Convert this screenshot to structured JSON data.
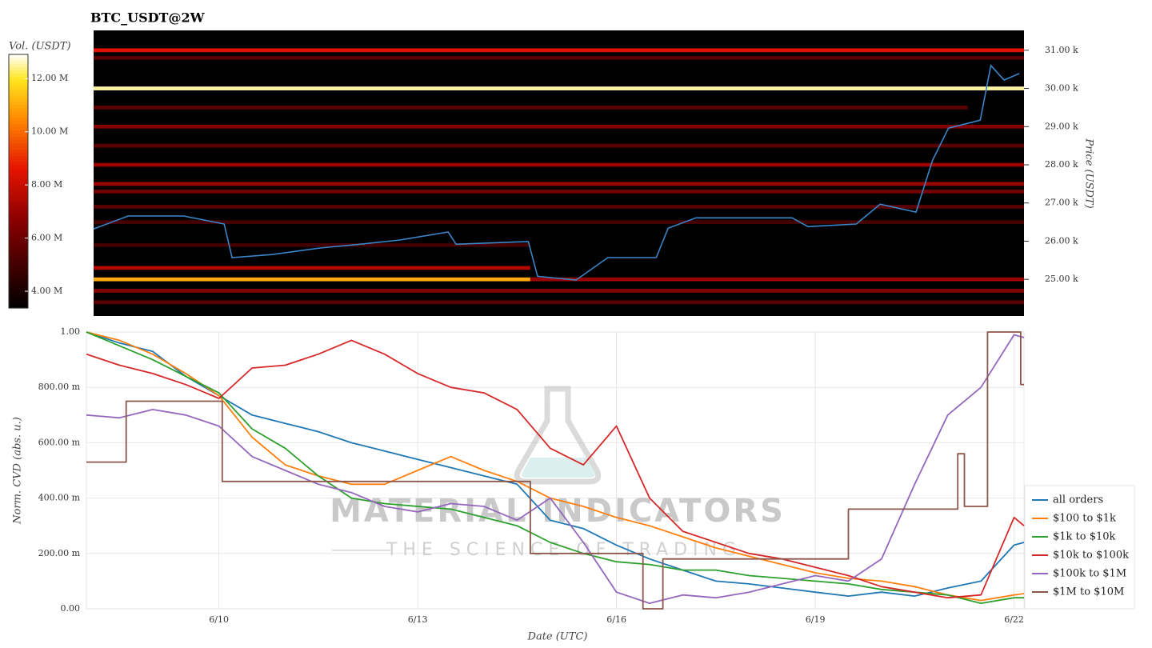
{
  "chart_data": [
    {
      "type": "heatmap",
      "title": "BTC_USDT@2W",
      "colorbar_label": "Vol. (USDT)",
      "ylabel": "Price (USDT)",
      "xlim": [
        0.11,
        14.15
      ],
      "ylim": [
        24040,
        31520
      ],
      "yticks": [
        {
          "value": 25000,
          "label": "25.00 k"
        },
        {
          "value": 26000,
          "label": "26.00 k"
        },
        {
          "value": 27000,
          "label": "27.00 k"
        },
        {
          "value": 28000,
          "label": "28.00 k"
        },
        {
          "value": 29000,
          "label": "29.00 k"
        },
        {
          "value": 30000,
          "label": "30.00 k"
        },
        {
          "value": 31000,
          "label": "31.00 k"
        }
      ],
      "clim": [
        3370000,
        12910000
      ],
      "cticks": [
        {
          "value": 4000000,
          "label": "4.00 M"
        },
        {
          "value": 6000000,
          "label": "6.00 M"
        },
        {
          "value": 8000000,
          "label": "8.00 M"
        },
        {
          "value": 10000000,
          "label": "10.00 M"
        },
        {
          "value": 12000000,
          "label": "12.00 M"
        }
      ],
      "levels": [
        {
          "x": [
            0.11,
            14.15
          ],
          "price": 31000,
          "volume": 8500000
        },
        {
          "x": [
            0.11,
            14.15
          ],
          "price": 30800,
          "volume": 5500000
        },
        {
          "x": [
            0.11,
            14.15
          ],
          "price": 30000,
          "volume": 12500000
        },
        {
          "x": [
            0.11,
            13.3
          ],
          "price": 29500,
          "volume": 5500000
        },
        {
          "x": [
            0.11,
            14.15
          ],
          "price": 29000,
          "volume": 6500000
        },
        {
          "x": [
            0.11,
            14.15
          ],
          "price": 28500,
          "volume": 5500000
        },
        {
          "x": [
            0.11,
            14.15
          ],
          "price": 28000,
          "volume": 7000000
        },
        {
          "x": [
            0.11,
            14.15
          ],
          "price": 27500,
          "volume": 7000000
        },
        {
          "x": [
            0.11,
            14.15
          ],
          "price": 27300,
          "volume": 6000000
        },
        {
          "x": [
            0.11,
            14.15
          ],
          "price": 26900,
          "volume": 5500000
        },
        {
          "x": [
            0.11,
            14.15
          ],
          "price": 26500,
          "volume": 5000000
        },
        {
          "x": [
            0.11,
            6.7
          ],
          "price": 25900,
          "volume": 5000000
        },
        {
          "x": [
            0.11,
            6.7
          ],
          "price": 25300,
          "volume": 7500000
        },
        {
          "x": [
            0.11,
            6.7
          ],
          "price": 25000,
          "volume": 11000000
        },
        {
          "x": [
            6.7,
            14.15
          ],
          "price": 25000,
          "volume": 7000000
        },
        {
          "x": [
            0.11,
            14.15
          ],
          "price": 24700,
          "volume": 6500000
        },
        {
          "x": [
            0.11,
            14.15
          ],
          "price": 24400,
          "volume": 5500000
        }
      ],
      "price_line": {
        "color": "#3a86c8",
        "x": [
          0.11,
          0.63,
          1.47,
          2.08,
          2.2,
          2.8,
          3.53,
          4.13,
          4.73,
          5.46,
          5.58,
          6.67,
          6.81,
          7.39,
          7.87,
          8.6,
          8.78,
          9.2,
          10.65,
          10.89,
          11.62,
          11.98,
          12.52,
          12.77,
          13.01,
          13.49,
          13.65,
          13.85,
          14.08
        ],
        "values": [
          26320,
          26660,
          26660,
          26450,
          25570,
          25650,
          25820,
          25920,
          26030,
          26240,
          25920,
          25990,
          25080,
          24980,
          25570,
          25570,
          26340,
          26610,
          26610,
          26380,
          26450,
          26970,
          26760,
          28120,
          28960,
          29170,
          30600,
          30220,
          30390
        ]
      }
    },
    {
      "type": "line",
      "xlabel": "Date (UTC)",
      "ylabel": "Norm. CVD (abs. u.)",
      "xlim": [
        0,
        14.15
      ],
      "ylim": [
        0,
        1
      ],
      "xticks": [
        {
          "value": 2,
          "label": "6/10"
        },
        {
          "value": 5,
          "label": "6/13"
        },
        {
          "value": 8,
          "label": "6/16"
        },
        {
          "value": 11,
          "label": "6/19"
        },
        {
          "value": 14,
          "label": "6/22"
        }
      ],
      "yticks": [
        {
          "value": 0,
          "label": "0.00"
        },
        {
          "value": 0.2,
          "label": "200.00 m"
        },
        {
          "value": 0.4,
          "label": "400.00 m"
        },
        {
          "value": 0.6,
          "label": "600.00 m"
        },
        {
          "value": 0.8,
          "label": "800.00 m"
        },
        {
          "value": 1,
          "label": "1.00"
        }
      ],
      "grid": true,
      "legend": "lower right",
      "watermark": {
        "title": "MATERIAL INDICATORS",
        "subtitle": "THE SCIENCE OF TRADING"
      },
      "x": [
        0,
        0.5,
        1,
        1.5,
        2,
        2.5,
        3,
        3.5,
        4,
        4.5,
        5,
        5.5,
        6,
        6.5,
        7,
        7.5,
        8,
        8.5,
        9,
        9.5,
        10,
        10.5,
        11,
        11.5,
        12,
        12.5,
        13,
        13.5,
        14,
        14.15
      ],
      "series": [
        {
          "name": "all orders",
          "color": "#1f77b4",
          "values": [
            1.0,
            0.96,
            0.93,
            0.84,
            0.77,
            0.7,
            0.67,
            0.64,
            0.6,
            0.57,
            0.54,
            0.51,
            0.48,
            0.45,
            0.32,
            0.29,
            0.23,
            0.18,
            0.14,
            0.1,
            0.09,
            0.075,
            0.06,
            0.046,
            0.06,
            0.046,
            0.075,
            0.1,
            0.23,
            0.24
          ]
        },
        {
          "name": "$100 to $1k",
          "color": "#ff7f0e",
          "values": [
            1.0,
            0.97,
            0.92,
            0.85,
            0.77,
            0.62,
            0.52,
            0.48,
            0.45,
            0.45,
            0.5,
            0.55,
            0.5,
            0.46,
            0.4,
            0.37,
            0.33,
            0.3,
            0.26,
            0.22,
            0.19,
            0.16,
            0.13,
            0.11,
            0.1,
            0.08,
            0.05,
            0.03,
            0.05,
            0.055
          ]
        },
        {
          "name": "$1k to $10k",
          "color": "#2ca02c",
          "values": [
            1.0,
            0.95,
            0.9,
            0.84,
            0.78,
            0.65,
            0.58,
            0.48,
            0.4,
            0.38,
            0.37,
            0.36,
            0.33,
            0.3,
            0.24,
            0.2,
            0.17,
            0.16,
            0.14,
            0.14,
            0.12,
            0.11,
            0.1,
            0.09,
            0.07,
            0.06,
            0.05,
            0.02,
            0.04,
            0.04
          ]
        },
        {
          "name": "$10k to $100k",
          "color": "#d62728",
          "values": [
            0.92,
            0.88,
            0.85,
            0.81,
            0.76,
            0.87,
            0.88,
            0.92,
            0.97,
            0.92,
            0.85,
            0.8,
            0.78,
            0.72,
            0.58,
            0.52,
            0.66,
            0.4,
            0.28,
            0.24,
            0.2,
            0.18,
            0.15,
            0.12,
            0.08,
            0.06,
            0.04,
            0.05,
            0.33,
            0.3
          ]
        },
        {
          "name": "$100k to $1M",
          "color": "#9467bd",
          "values": [
            0.7,
            0.69,
            0.72,
            0.7,
            0.66,
            0.55,
            0.5,
            0.45,
            0.42,
            0.37,
            0.35,
            0.38,
            0.37,
            0.32,
            0.4,
            0.24,
            0.06,
            0.02,
            0.05,
            0.04,
            0.06,
            0.09,
            0.12,
            0.1,
            0.18,
            0.45,
            0.7,
            0.8,
            0.99,
            0.98
          ]
        },
        {
          "name": "$1M to $10M",
          "color": "#8c564b",
          "x": [
            0,
            0.6,
            0.6,
            2.05,
            2.05,
            6.7,
            6.7,
            8.4,
            8.4,
            8.7,
            8.7,
            11.5,
            11.5,
            13.15,
            13.15,
            13.25,
            13.25,
            13.6,
            13.6,
            14.1,
            14.1,
            14.15
          ],
          "values": [
            0.53,
            0.53,
            0.75,
            0.75,
            0.46,
            0.46,
            0.2,
            0.2,
            0,
            0,
            0.18,
            0.18,
            0.36,
            0.36,
            0.56,
            0.56,
            0.37,
            0.37,
            1.0,
            1.0,
            0.81,
            0.81
          ]
        }
      ]
    }
  ]
}
